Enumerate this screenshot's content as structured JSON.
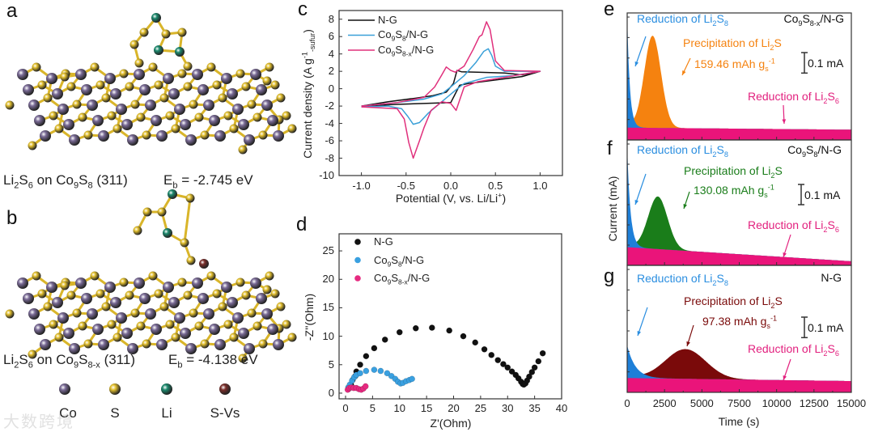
{
  "panels": {
    "a": {
      "label": "a",
      "caption": "Li_{2}S_{6} on Co_{9}S_{8} (311)",
      "energy": "E_{b} = -2.745 eV"
    },
    "b": {
      "label": "b",
      "caption": "Li_{2}S_{6} on Co_{9}S_{8-x} (311)",
      "energy": "E_{b} = -4.138 eV"
    }
  },
  "atom_legend": [
    {
      "label": "Co",
      "color": "#7a6b96"
    },
    {
      "label": "S",
      "color": "#e3c02e"
    },
    {
      "label": "Li",
      "color": "#1d8a6e"
    },
    {
      "label": "S-Vs",
      "color": "#7a2f2b"
    }
  ],
  "watermark": "大数跨境",
  "chart_data": [
    {
      "panel_label": "c",
      "type": "line",
      "xlabel": "Potential (V, vs. Li/Li^{+})",
      "ylabel": "Current density (A g^{-1}_{-sufur})",
      "xlim": [
        -1.25,
        1.25
      ],
      "ylim": [
        -10,
        9
      ],
      "xticks": [
        "-1.0",
        "-0.5",
        "0.0",
        "0.5",
        "1.0"
      ],
      "yticks": [
        "-10",
        "-8",
        "-6",
        "-4",
        "-2",
        "0",
        "2",
        "4",
        "6",
        "8"
      ],
      "legend_position": "top-left",
      "series": [
        {
          "name": "N-G",
          "color": "#111111",
          "points": [
            [
              -1,
              -2
            ],
            [
              -0.7,
              -1.5
            ],
            [
              -0.4,
              -1.1
            ],
            [
              -0.2,
              -0.8
            ],
            [
              -0.05,
              -0.4
            ],
            [
              0.03,
              0.6
            ],
            [
              0.07,
              2.1
            ],
            [
              0.12,
              1.95
            ],
            [
              0.3,
              1.9
            ],
            [
              0.6,
              1.8
            ],
            [
              0.8,
              1.6
            ],
            [
              1,
              2
            ],
            [
              0.8,
              1.4
            ],
            [
              0.5,
              1.0
            ],
            [
              0.2,
              0.6
            ],
            [
              0.1,
              0.4
            ],
            [
              0.04,
              -0.8
            ],
            [
              0,
              -1.6
            ],
            [
              -0.3,
              -1.7
            ],
            [
              -0.6,
              -1.8
            ],
            [
              -1,
              -2
            ]
          ]
        },
        {
          "name": "Co_{9}S_{8}/N-G",
          "color": "#3aa0d8",
          "points": [
            [
              -1,
              -2
            ],
            [
              -0.6,
              -1.6
            ],
            [
              -0.3,
              -1.2
            ],
            [
              -0.1,
              -0.6
            ],
            [
              0,
              0.2
            ],
            [
              0.15,
              1.5
            ],
            [
              0.28,
              3.0
            ],
            [
              0.37,
              4.3
            ],
            [
              0.42,
              4.6
            ],
            [
              0.46,
              3.8
            ],
            [
              0.5,
              2.6
            ],
            [
              0.6,
              2.0
            ],
            [
              1,
              2
            ],
            [
              0.7,
              1.5
            ],
            [
              0.4,
              1.3
            ],
            [
              0.15,
              0.6
            ],
            [
              0.05,
              -0.2
            ],
            [
              -0.1,
              -1.5
            ],
            [
              -0.25,
              -2.8
            ],
            [
              -0.35,
              -3.9
            ],
            [
              -0.42,
              -4.1
            ],
            [
              -0.48,
              -3.2
            ],
            [
              -0.55,
              -2.3
            ],
            [
              -0.7,
              -2.0
            ],
            [
              -1,
              -2.1
            ]
          ]
        },
        {
          "name": "Co_{9}S_{8-x}/N-G",
          "color": "#e0307c",
          "points": [
            [
              -1,
              -2
            ],
            [
              -0.6,
              -1.6
            ],
            [
              -0.3,
              -1.0
            ],
            [
              -0.18,
              0.2
            ],
            [
              -0.1,
              1.6
            ],
            [
              -0.05,
              2.5
            ],
            [
              0,
              2.1
            ],
            [
              0.05,
              1.9
            ],
            [
              0.15,
              2.6
            ],
            [
              0.25,
              4.5
            ],
            [
              0.32,
              6.0
            ],
            [
              0.35,
              6.2
            ],
            [
              0.4,
              7.7
            ],
            [
              0.44,
              6.8
            ],
            [
              0.5,
              3.2
            ],
            [
              0.6,
              2.1
            ],
            [
              1,
              2
            ],
            [
              0.6,
              1.3
            ],
            [
              0.3,
              0.8
            ],
            [
              0.15,
              0.2
            ],
            [
              0.06,
              -2.5
            ],
            [
              0,
              -1.7
            ],
            [
              -0.1,
              -1.5
            ],
            [
              -0.22,
              -2.5
            ],
            [
              -0.3,
              -4.5
            ],
            [
              -0.35,
              -6.0
            ],
            [
              -0.42,
              -8.0
            ],
            [
              -0.47,
              -6.2
            ],
            [
              -0.52,
              -3.5
            ],
            [
              -0.6,
              -2.3
            ],
            [
              -1,
              -2.1
            ]
          ]
        }
      ]
    },
    {
      "panel_label": "d",
      "type": "scatter",
      "xlabel": "Z'(Ohm)",
      "ylabel": "-Z''(Ohm)",
      "xlim": [
        -1.2,
        40
      ],
      "ylim": [
        -1,
        28
      ],
      "xticks": [
        "0",
        "5",
        "10",
        "15",
        "20",
        "25",
        "30",
        "35",
        "40"
      ],
      "yticks": [
        "0",
        "5",
        "10",
        "15",
        "20",
        "25"
      ],
      "legend_position": "top-left",
      "series": [
        {
          "name": "N-G",
          "color": "#111111",
          "points": [
            [
              0.5,
              0.7
            ],
            [
              1,
              1.5
            ],
            [
              1.3,
              2.3
            ],
            [
              1.8,
              3
            ],
            [
              2,
              3.8
            ],
            [
              2.7,
              5
            ],
            [
              3.8,
              6.5
            ],
            [
              5.3,
              7.9
            ],
            [
              7.3,
              9.4
            ],
            [
              10,
              10.7
            ],
            [
              13,
              11.4
            ],
            [
              16,
              11.5
            ],
            [
              19.2,
              11
            ],
            [
              21.8,
              10
            ],
            [
              24,
              8.9
            ],
            [
              25.7,
              7.7
            ],
            [
              27,
              6.7
            ],
            [
              28.2,
              5.8
            ],
            [
              29.2,
              5.1
            ],
            [
              30,
              4.5
            ],
            [
              30.8,
              3.8
            ],
            [
              31.5,
              3.2
            ],
            [
              32,
              2.6
            ],
            [
              32.5,
              2
            ],
            [
              32.8,
              1.6
            ],
            [
              33,
              1.5
            ],
            [
              33.3,
              1.7
            ],
            [
              33.6,
              2.2
            ],
            [
              34,
              2.9
            ],
            [
              34.5,
              3.7
            ],
            [
              35,
              4.5
            ],
            [
              35.7,
              5.6
            ],
            [
              36.5,
              7
            ]
          ]
        },
        {
          "name": "Co_{9}S_{8}/N-G",
          "color": "#3aa0e0",
          "points": [
            [
              0.5,
              1
            ],
            [
              0.8,
              1.5
            ],
            [
              1.2,
              2.2
            ],
            [
              1.6,
              2.8
            ],
            [
              2,
              3.2
            ],
            [
              2.7,
              3.5
            ],
            [
              3.8,
              3.9
            ],
            [
              5.3,
              4.1
            ],
            [
              6.5,
              3.9
            ],
            [
              7.7,
              3.5
            ],
            [
              8.5,
              3
            ],
            [
              9.2,
              2.5
            ],
            [
              9.7,
              2
            ],
            [
              10.2,
              1.7
            ],
            [
              10.6,
              1.8
            ],
            [
              11.2,
              2.1
            ],
            [
              11.8,
              2.3
            ],
            [
              12.3,
              2.5
            ]
          ]
        },
        {
          "name": "Co_{9}S_{8-x}/N-G",
          "color": "#e62a80",
          "points": [
            [
              0.4,
              0.6
            ],
            [
              0.7,
              0.9
            ],
            [
              1.1,
              1
            ],
            [
              1.5,
              0.9
            ],
            [
              2,
              0.9
            ],
            [
              2.5,
              0.7
            ],
            [
              2.9,
              0.6
            ],
            [
              3.3,
              0.8
            ],
            [
              3.7,
              1.2
            ]
          ]
        }
      ]
    },
    {
      "panel_label": "e",
      "type": "area",
      "sample": "Co_{9}S_{8-x}/N-G",
      "xlim": [
        0,
        15000
      ],
      "ylim": [
        0,
        0.62
      ],
      "baseline_mA": [
        0.06,
        0.05
      ],
      "li2s8_peak_mA": 0.55,
      "li2s8_decay_s": 180,
      "precip_center_s": 1700,
      "precip_amp_mA": 0.45,
      "precip_sigma_s": 560,
      "precip_color": "#f5820f",
      "annotations": {
        "li2s8": "Reduction of Li_{2}S_{8}",
        "precip": "Precipitation of Li_{2}S",
        "capacity": "159.46 mAh g_{s}^{-1}",
        "li2s6": "Reduction of Li_{2}S_{6}",
        "scalebar": "0.1 mA"
      }
    },
    {
      "panel_label": "f",
      "type": "area",
      "sample": "Co_{9}S_{8}/N-G",
      "xlim": [
        0,
        15000
      ],
      "ylim": [
        0,
        0.62
      ],
      "baseline_mA": [
        0.09,
        0.02
      ],
      "li2s8_peak_mA": 0.5,
      "li2s8_decay_s": 220,
      "precip_center_s": 2050,
      "precip_amp_mA": 0.26,
      "precip_sigma_s": 650,
      "precip_color": "#1a7d1a",
      "annotations": {
        "li2s8": "Reduction of Li_{2}S_{8}",
        "precip": "Precipitation of Li_{2}S",
        "capacity": "130.08 mAh g_{s}^{-1}",
        "li2s6": "Reduction of Li_{2}S_{6}",
        "scalebar": "0.1 mA"
      }
    },
    {
      "panel_label": "g",
      "type": "area",
      "sample": "N-G",
      "xlim": [
        0,
        15000
      ],
      "ylim": [
        0,
        0.62
      ],
      "baseline_mA": [
        0.07,
        0.055
      ],
      "li2s8_peak_mA": 0.16,
      "li2s8_decay_s": 550,
      "precip_center_s": 3900,
      "precip_amp_mA": 0.145,
      "precip_sigma_s": 1350,
      "precip_color": "#7a0a0a",
      "annotations": {
        "li2s8": "Reduction of Li_{2}S_{8}",
        "precip": "Precipitation of Li_{2}S",
        "capacity": "97.38 mAh g_{s}^{-1}",
        "li2s6": "Reduction of Li_{2}S_{6}",
        "scalebar": "0.1 mA"
      },
      "xlabel": "Time (s)",
      "ylabel": "Current (mA)",
      "xticks": [
        "0",
        "2500",
        "5000",
        "7500",
        "10000",
        "12500",
        "15000"
      ]
    }
  ]
}
